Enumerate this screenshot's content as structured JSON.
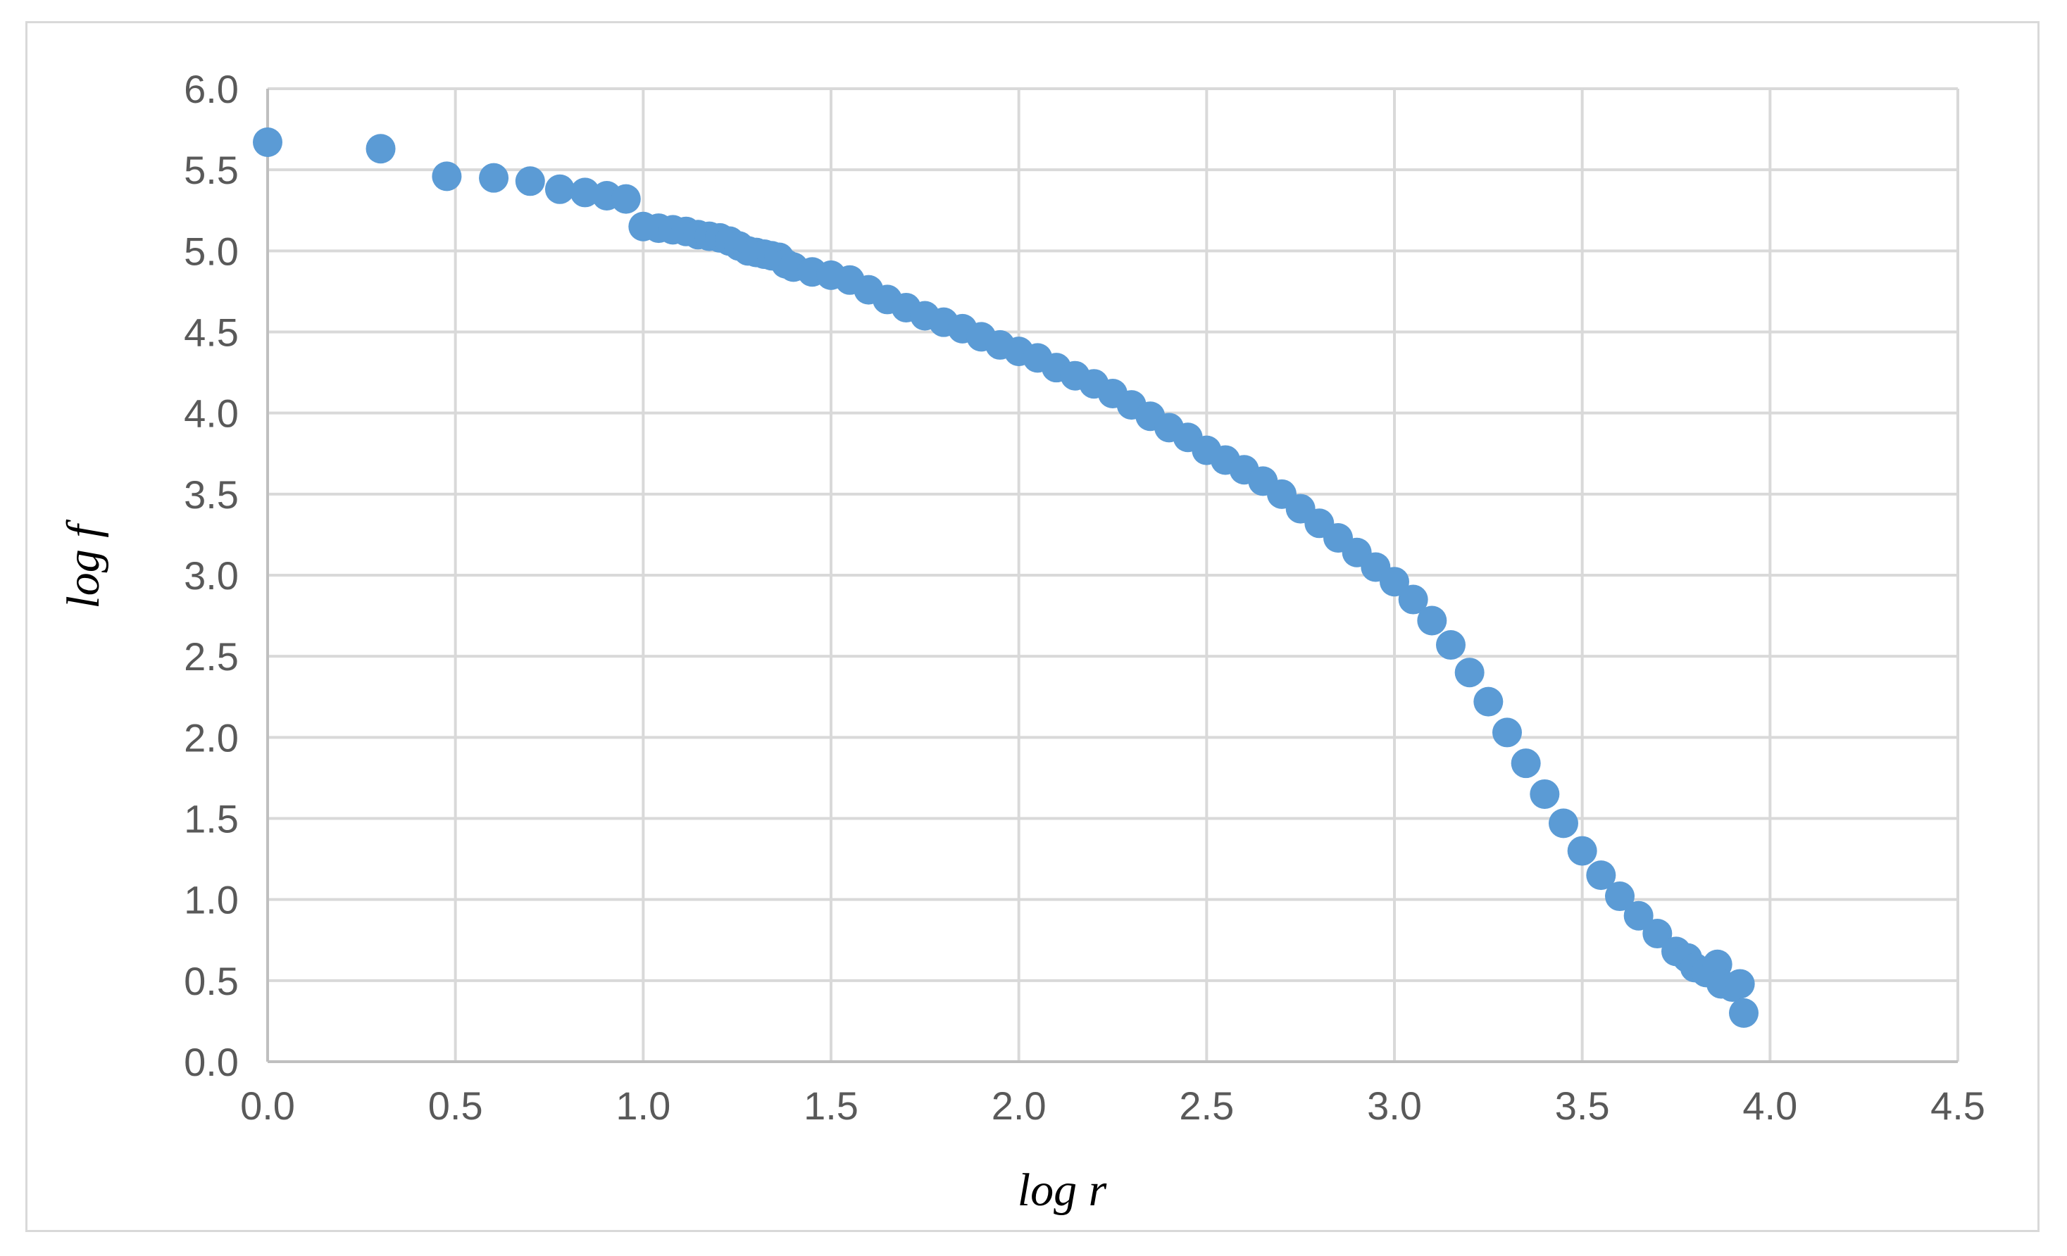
{
  "chart_data": {
    "type": "scatter",
    "title": "",
    "xlabel": "log r",
    "ylabel": "log f",
    "xlim": [
      0,
      4.5
    ],
    "ylim": [
      0,
      6
    ],
    "xticks": [
      "0.0",
      "0.5",
      "1.0",
      "1.5",
      "2.0",
      "2.5",
      "3.0",
      "3.5",
      "4.0",
      "4.5"
    ],
    "yticks": [
      "0.0",
      "0.5",
      "1.0",
      "1.5",
      "2.0",
      "2.5",
      "3.0",
      "3.5",
      "4.0",
      "4.5",
      "5.0",
      "5.5",
      "6.0"
    ],
    "grid": true,
    "legend": "none",
    "marker_color": "#5b9bd5",
    "series": [
      {
        "x": [
          0.0,
          0.301,
          0.477,
          0.602,
          0.699,
          0.778,
          0.845,
          0.903,
          0.954,
          1.0,
          1.041,
          1.079,
          1.114,
          1.146,
          1.176,
          1.204,
          1.23,
          1.255,
          1.279,
          1.301,
          1.322,
          1.342,
          1.362,
          1.38,
          1.4,
          1.45,
          1.5,
          1.55,
          1.6,
          1.65,
          1.7,
          1.75,
          1.8,
          1.85,
          1.9,
          1.95,
          2.0,
          2.05,
          2.1,
          2.15,
          2.2,
          2.25,
          2.3,
          2.35,
          2.4,
          2.45,
          2.5,
          2.55,
          2.6,
          2.65,
          2.7,
          2.75,
          2.8,
          2.85,
          2.9,
          2.95,
          3.0,
          3.05,
          3.1,
          3.15,
          3.2,
          3.25,
          3.3,
          3.35,
          3.4,
          3.45,
          3.5,
          3.55,
          3.6,
          3.65,
          3.7,
          3.75,
          3.78,
          3.8,
          3.83,
          3.86,
          3.87,
          3.9,
          3.92,
          3.93
        ],
        "y": [
          5.67,
          5.63,
          5.46,
          5.45,
          5.43,
          5.38,
          5.36,
          5.34,
          5.32,
          5.15,
          5.14,
          5.13,
          5.12,
          5.1,
          5.09,
          5.08,
          5.06,
          5.03,
          5.0,
          4.99,
          4.98,
          4.97,
          4.96,
          4.92,
          4.9,
          4.87,
          4.85,
          4.82,
          4.76,
          4.7,
          4.65,
          4.6,
          4.56,
          4.52,
          4.47,
          4.42,
          4.38,
          4.34,
          4.28,
          4.23,
          4.18,
          4.12,
          4.05,
          3.98,
          3.91,
          3.85,
          3.77,
          3.71,
          3.65,
          3.58,
          3.5,
          3.41,
          3.32,
          3.23,
          3.14,
          3.05,
          2.96,
          2.85,
          2.72,
          2.57,
          2.4,
          2.22,
          2.03,
          1.84,
          1.65,
          1.47,
          1.3,
          1.15,
          1.02,
          0.9,
          0.79,
          0.68,
          0.64,
          0.58,
          0.55,
          0.6,
          0.48,
          0.46,
          0.48,
          0.3
        ]
      }
    ]
  }
}
